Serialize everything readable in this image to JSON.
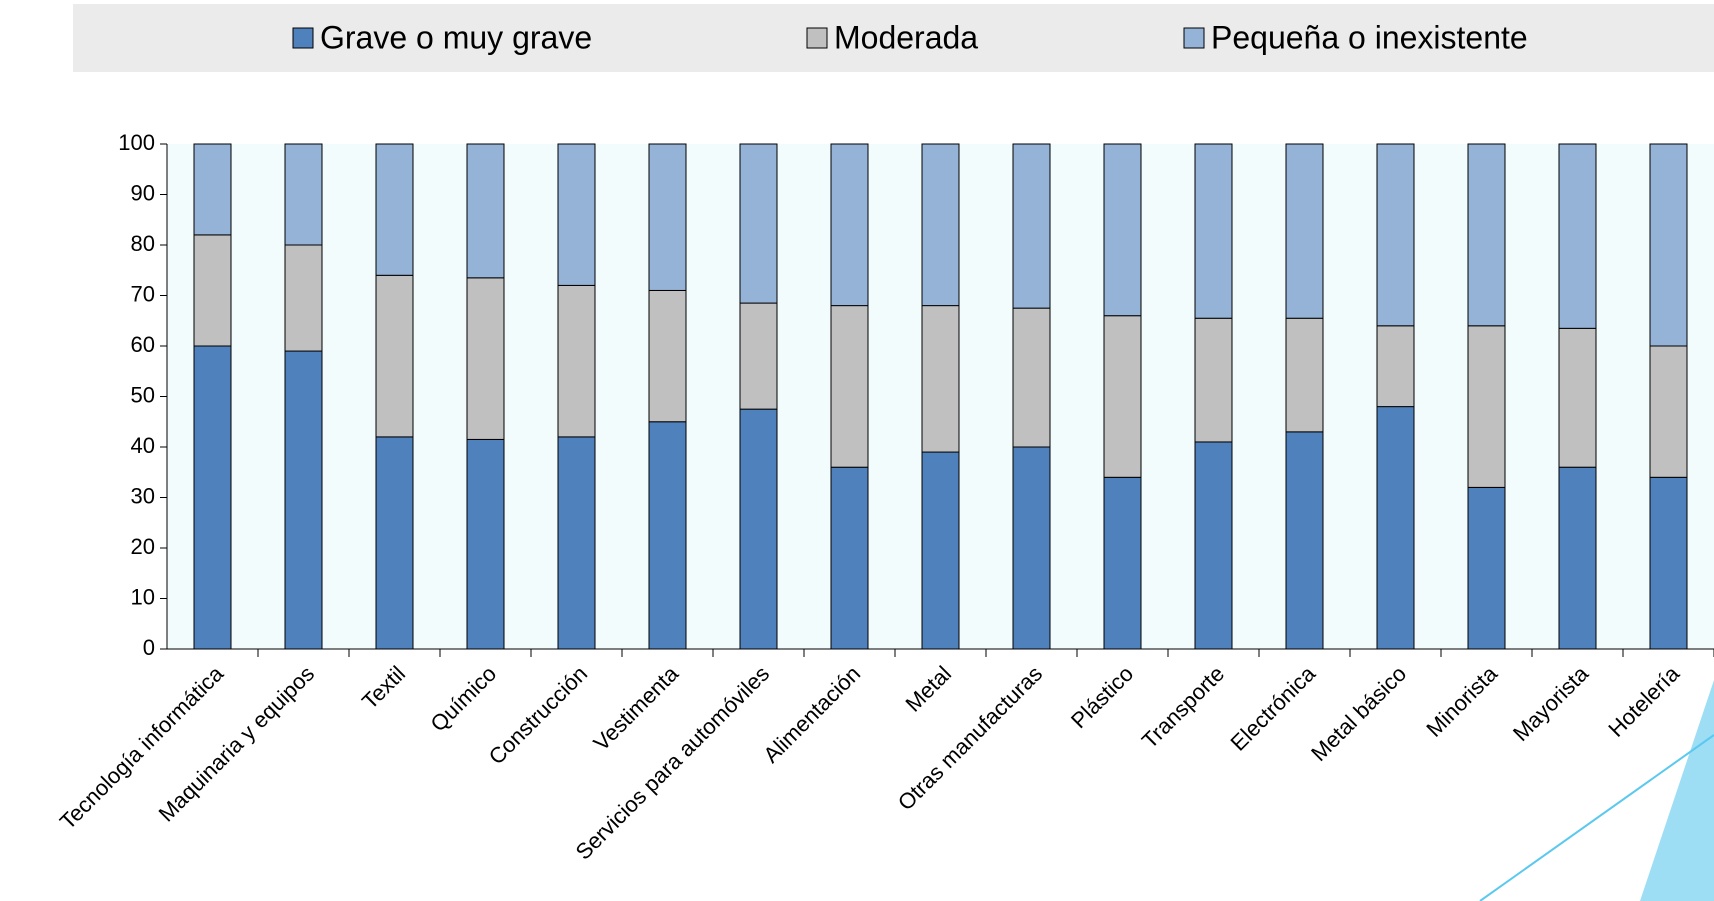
{
  "chart_data": {
    "type": "stacked_bar",
    "categories": [
      "Tecnología informática",
      "Maquinaria y equipos",
      "Textil",
      "Químico",
      "Construcción",
      "Vestimenta",
      "Servicios para automóviles",
      "Alimentación",
      "Metal",
      "Otras manufacturas",
      "Plástico",
      "Transporte",
      "Electrónica",
      "Metal básico",
      "Minorista",
      "Mayorista",
      "Hotelería"
    ],
    "series": [
      {
        "name": "Grave o muy grave",
        "color": "#4f81bd",
        "values": [
          60,
          59,
          42,
          41.5,
          42,
          45,
          47.5,
          36,
          39,
          40,
          34,
          41,
          43,
          48,
          32,
          36,
          34
        ]
      },
      {
        "name": "Moderada",
        "color": "#c0c0c0",
        "values": [
          22,
          21,
          32,
          32,
          30,
          26,
          21,
          32,
          29,
          27.5,
          32,
          24.5,
          22.5,
          16,
          32,
          27.5,
          26
        ]
      },
      {
        "name": "Pequeña o inexistente",
        "color": "#95b3d7",
        "values": [
          18,
          20,
          26,
          26.5,
          28,
          29,
          31.5,
          32,
          32,
          32.5,
          34,
          34.5,
          34.5,
          36,
          36,
          36.5,
          40
        ]
      }
    ],
    "ylim": [
      0,
      100
    ],
    "yticks": [
      0,
      10,
      20,
      30,
      40,
      50,
      60,
      70,
      80,
      90,
      100
    ],
    "legend": "top"
  }
}
